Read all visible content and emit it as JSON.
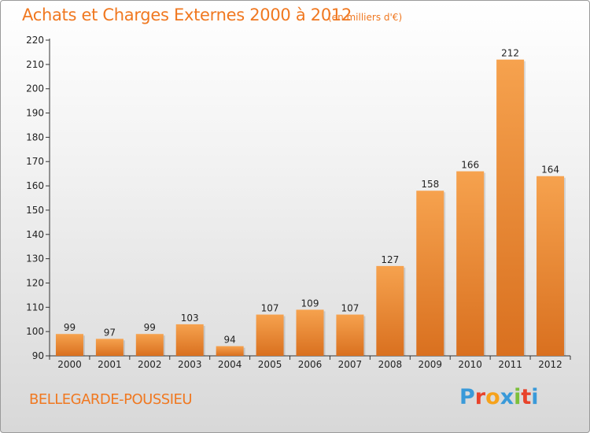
{
  "header": {
    "title": "Achats et Charges Externes 2000 à 2012",
    "subtitle": "(en milliers d'€)"
  },
  "footer": {
    "commune": "BELLEGARDE-POUSSIEU",
    "logo_text": "Proxiti"
  },
  "colors": {
    "accent": "#f07820",
    "bar_light": "#f6a24e",
    "bar_dark": "#d9701f",
    "logo_letters": [
      "#3a9ad9",
      "#e8432b",
      "#f6a21b",
      "#3a9ad9",
      "#7cbf3a",
      "#e8432b",
      "#3a9ad9"
    ]
  },
  "chart_data": {
    "type": "bar",
    "title": "Achats et Charges Externes 2000 à 2012",
    "subtitle": "(en milliers d'€)",
    "categories": [
      "2000",
      "2001",
      "2002",
      "2003",
      "2004",
      "2005",
      "2006",
      "2007",
      "2008",
      "2009",
      "2010",
      "2011",
      "2012"
    ],
    "values": [
      99,
      97,
      99,
      103,
      94,
      107,
      109,
      107,
      127,
      158,
      166,
      212,
      164
    ],
    "ylim": [
      90,
      220
    ],
    "yticks": [
      90,
      100,
      110,
      120,
      130,
      140,
      150,
      160,
      170,
      180,
      190,
      200,
      210,
      220
    ],
    "grid": false,
    "legend": "none",
    "data_labels": true
  }
}
